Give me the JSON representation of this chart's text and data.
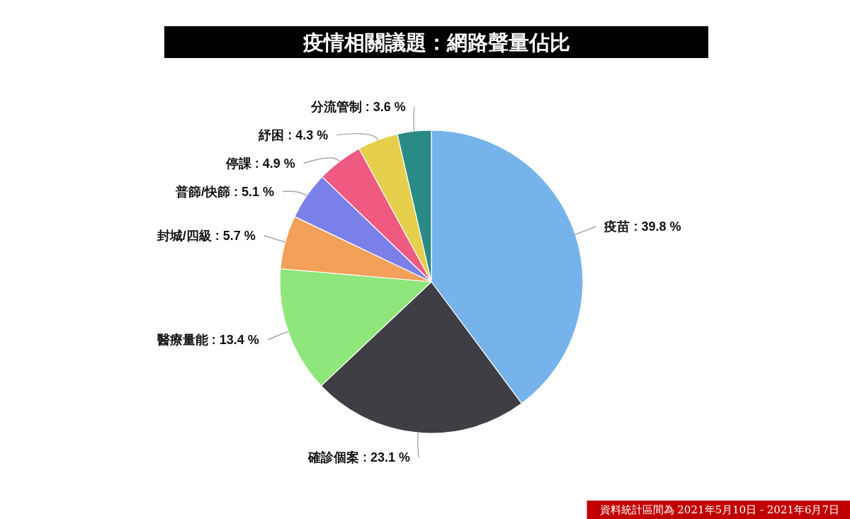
{
  "chart_data": {
    "type": "pie",
    "title": "疫情相關議題：網路聲量佔比",
    "categories": [
      "疫苗",
      "確診個案",
      "醫療量能",
      "封城/四級",
      "普篩/快篩",
      "停課",
      "紓困",
      "分流管制"
    ],
    "values": [
      39.8,
      23.1,
      13.4,
      5.7,
      5.1,
      4.9,
      4.3,
      3.6
    ],
    "colors": [
      "#76b3ea",
      "#3f3e45",
      "#8fe67a",
      "#f2a05a",
      "#7b7fe8",
      "#ee5a80",
      "#e5cf4d",
      "#2a8a85"
    ],
    "value_labels": [
      "39.8 %",
      "23.1 %",
      "13.4 %",
      "5.7 %",
      "5.1 %",
      "4.9 %",
      "4.3 %",
      "3.6 %"
    ],
    "annotations": [
      "資料統計區間為 2021年5月10日 - 2021年6月7日"
    ]
  }
}
